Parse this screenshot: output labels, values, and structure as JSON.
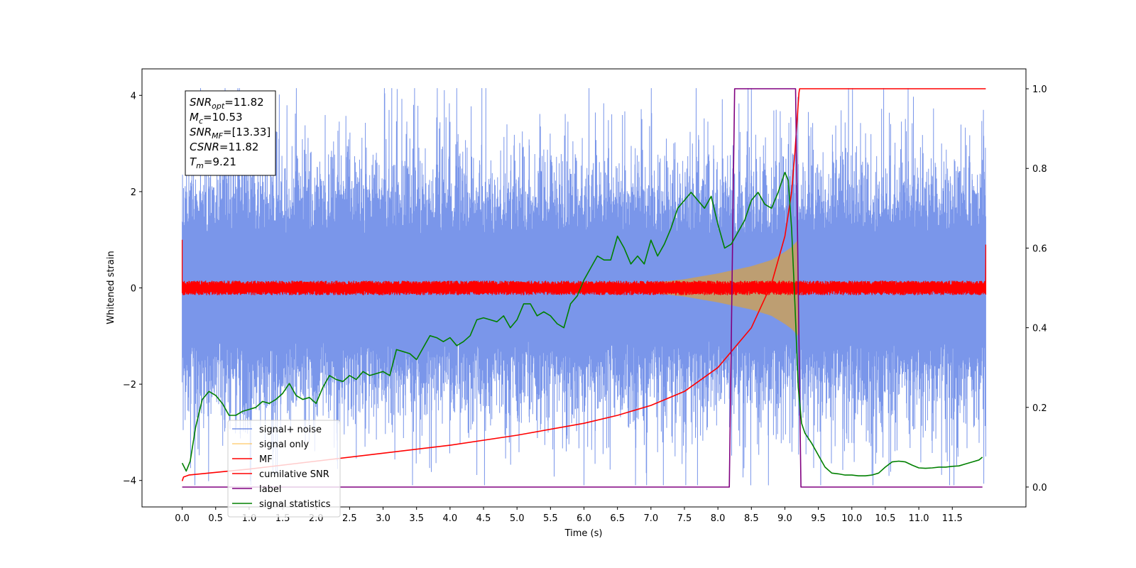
{
  "chart_data": {
    "type": "line",
    "xlabel": "Time (s)",
    "ylabel_left": "Whitened strain",
    "ylabel_right": "",
    "xlim": [
      -0.6,
      12.6
    ],
    "ylim_left": [
      -4.55,
      4.55
    ],
    "ylim_right": [
      -0.05,
      1.05
    ],
    "x_ticks": [
      0.0,
      0.5,
      1.0,
      1.5,
      2.0,
      2.5,
      3.0,
      3.5,
      4.0,
      4.5,
      5.0,
      5.5,
      6.0,
      6.5,
      7.0,
      7.5,
      8.0,
      8.5,
      9.0,
      9.5,
      10.0,
      10.5,
      11.0,
      11.5
    ],
    "x_tick_labels": [
      "0.0",
      "0.5",
      "1.0",
      "1.5",
      "2.0",
      "2.5",
      "3.0",
      "3.5",
      "4.0",
      "4.5",
      "5.0",
      "5.5",
      "6.0",
      "6.5",
      "7.0",
      "7.5",
      "8.0",
      "8.5",
      "9.0",
      "9.5",
      "10.0",
      "10.5",
      "11.0",
      "11.5"
    ],
    "y_left_ticks": [
      -4,
      -2,
      0,
      2,
      4
    ],
    "y_left_tick_labels": [
      "−4",
      "−2",
      "0",
      "2",
      "4"
    ],
    "y_right_ticks": [
      0.0,
      0.2,
      0.4,
      0.6,
      0.8,
      1.0
    ],
    "y_right_tick_labels": [
      "0.0",
      "0.2",
      "0.4",
      "0.6",
      "0.8",
      "1.0"
    ],
    "grid": false,
    "legend_position": "lower-left",
    "info_box": {
      "position": "top-left",
      "lines": [
        {
          "main": "SNR",
          "sub": "opt",
          "rest": "=11.82"
        },
        {
          "main": "M",
          "sub": "c",
          "rest": "=10.53"
        },
        {
          "main": "SNR",
          "sub": "MF",
          "rest": "=[13.33]"
        },
        {
          "main": "CSNR",
          "sub": "",
          "rest": "=11.82"
        },
        {
          "main": "T",
          "sub": "m",
          "rest": "=9.21"
        }
      ]
    },
    "series": [
      {
        "name": "signal+ noise",
        "axis": "left",
        "color": "#4169e1",
        "kind": "noise-band",
        "x_range": [
          0.0,
          12.0
        ],
        "envelope_y": [
          -4.1,
          4.15
        ],
        "typical_band_y": [
          -2.0,
          2.0
        ]
      },
      {
        "name": "signal only",
        "axis": "left",
        "color": "#ffa500",
        "kind": "chirp-envelope",
        "x": [
          6.5,
          7.0,
          7.5,
          8.0,
          8.5,
          8.8,
          9.0,
          9.1,
          9.2,
          9.21
        ],
        "amplitude": [
          0.05,
          0.1,
          0.18,
          0.3,
          0.45,
          0.58,
          0.75,
          0.85,
          1.0,
          0.0
        ]
      },
      {
        "name": "MF",
        "axis": "left",
        "color": "#ff0000",
        "kind": "noise-band",
        "x_range": [
          0.0,
          12.0
        ],
        "envelope_y": [
          -0.15,
          0.15
        ],
        "edge_values": {
          "start": 1.0,
          "end": 0.9
        }
      },
      {
        "name": "cumilative SNR",
        "axis": "right",
        "color": "#ff0000",
        "kind": "line",
        "x": [
          0.0,
          0.02,
          0.1,
          1.0,
          2.0,
          3.0,
          4.0,
          5.0,
          6.0,
          6.5,
          7.0,
          7.5,
          8.0,
          8.5,
          8.8,
          9.0,
          9.1,
          9.15,
          9.21,
          9.22,
          12.0
        ],
        "y": [
          0.015,
          0.025,
          0.03,
          0.045,
          0.065,
          0.085,
          0.105,
          0.13,
          0.16,
          0.18,
          0.205,
          0.24,
          0.3,
          0.4,
          0.51,
          0.63,
          0.74,
          0.84,
          0.99,
          1.0,
          1.0
        ]
      },
      {
        "name": "label",
        "axis": "right",
        "color": "#800080",
        "kind": "line",
        "x": [
          0.0,
          8.17,
          8.25,
          9.16,
          9.24,
          11.95
        ],
        "y": [
          0.0,
          0.0,
          1.0,
          1.0,
          0.0,
          0.0
        ]
      },
      {
        "name": "signal statistics",
        "axis": "right",
        "color": "#008000",
        "kind": "line",
        "x": [
          0.0,
          0.06,
          0.12,
          0.2,
          0.3,
          0.4,
          0.5,
          0.6,
          0.7,
          0.8,
          0.9,
          1.0,
          1.1,
          1.2,
          1.3,
          1.4,
          1.5,
          1.6,
          1.7,
          1.8,
          1.9,
          2.0,
          2.1,
          2.2,
          2.3,
          2.4,
          2.5,
          2.6,
          2.7,
          2.8,
          2.9,
          3.0,
          3.1,
          3.2,
          3.3,
          3.4,
          3.5,
          3.6,
          3.7,
          3.8,
          3.9,
          4.0,
          4.1,
          4.2,
          4.3,
          4.4,
          4.5,
          4.6,
          4.7,
          4.8,
          4.9,
          5.0,
          5.1,
          5.2,
          5.3,
          5.4,
          5.5,
          5.6,
          5.7,
          5.8,
          5.9,
          6.0,
          6.1,
          6.2,
          6.3,
          6.4,
          6.5,
          6.6,
          6.7,
          6.8,
          6.9,
          7.0,
          7.1,
          7.2,
          7.3,
          7.4,
          7.5,
          7.6,
          7.7,
          7.8,
          7.9,
          8.0,
          8.1,
          8.2,
          8.3,
          8.4,
          8.5,
          8.6,
          8.7,
          8.8,
          8.9,
          9.0,
          9.05,
          9.1,
          9.15,
          9.2,
          9.25,
          9.3,
          9.4,
          9.5,
          9.6,
          9.7,
          9.8,
          9.9,
          10.0,
          10.1,
          10.2,
          10.3,
          10.4,
          10.5,
          10.6,
          10.7,
          10.8,
          10.9,
          11.0,
          11.1,
          11.2,
          11.3,
          11.4,
          11.5,
          11.6,
          11.7,
          11.8,
          11.9,
          11.95
        ],
        "y": [
          0.06,
          0.04,
          0.065,
          0.15,
          0.22,
          0.24,
          0.23,
          0.21,
          0.18,
          0.18,
          0.19,
          0.195,
          0.2,
          0.215,
          0.21,
          0.22,
          0.235,
          0.26,
          0.23,
          0.22,
          0.225,
          0.21,
          0.25,
          0.28,
          0.27,
          0.265,
          0.28,
          0.27,
          0.29,
          0.28,
          0.285,
          0.29,
          0.28,
          0.345,
          0.34,
          0.335,
          0.32,
          0.35,
          0.38,
          0.375,
          0.365,
          0.375,
          0.355,
          0.365,
          0.38,
          0.42,
          0.425,
          0.42,
          0.415,
          0.43,
          0.4,
          0.42,
          0.46,
          0.46,
          0.43,
          0.44,
          0.43,
          0.41,
          0.4,
          0.46,
          0.48,
          0.52,
          0.55,
          0.58,
          0.57,
          0.57,
          0.63,
          0.6,
          0.56,
          0.58,
          0.56,
          0.62,
          0.58,
          0.61,
          0.65,
          0.7,
          0.72,
          0.74,
          0.72,
          0.7,
          0.73,
          0.66,
          0.6,
          0.61,
          0.64,
          0.67,
          0.72,
          0.74,
          0.71,
          0.7,
          0.74,
          0.79,
          0.77,
          0.65,
          0.46,
          0.25,
          0.16,
          0.135,
          0.11,
          0.08,
          0.05,
          0.035,
          0.033,
          0.03,
          0.03,
          0.028,
          0.028,
          0.03,
          0.035,
          0.05,
          0.063,
          0.065,
          0.063,
          0.055,
          0.048,
          0.047,
          0.048,
          0.05,
          0.05,
          0.052,
          0.053,
          0.058,
          0.063,
          0.068,
          0.075
        ]
      }
    ]
  }
}
